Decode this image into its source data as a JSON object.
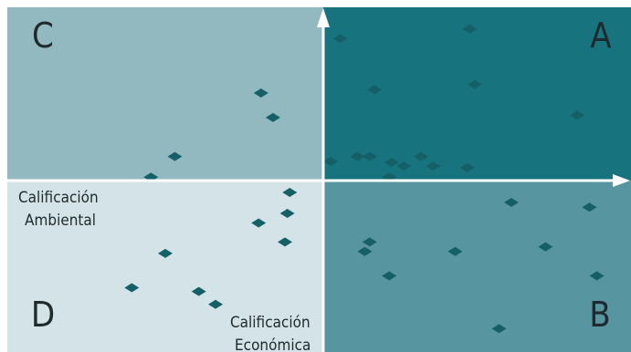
{
  "chart_data": {
    "type": "scatter",
    "title": "",
    "xlabel": "Calificación Económica",
    "xlabel_lines": [
      "Calificación",
      "Económica"
    ],
    "ylabel": "Calificación Ambiental",
    "ylabel_lines": [
      "Calificación",
      "Ambiental"
    ],
    "xlim": [
      -6.6,
      6.3
    ],
    "ylim": [
      -3.6,
      3.6
    ],
    "grid": false,
    "axes": "centered at origin with arrows",
    "colors": {
      "quadrant_A": "#17747f",
      "quadrant_B": "#5795a0",
      "quadrant_C": "#93b9c0",
      "quadrant_D": "#d4e3e8",
      "axis": "#ffffff",
      "marker": "#155f67",
      "text": "#1f2a2e"
    },
    "quadrants": [
      {
        "label": "A",
        "position": "top-right"
      },
      {
        "label": "B",
        "position": "bottom-right"
      },
      {
        "label": "C",
        "position": "top-left"
      },
      {
        "label": "D",
        "position": "bottom-left"
      }
    ],
    "points": [
      {
        "x": 0.35,
        "y": 2.95
      },
      {
        "x": 3.0,
        "y": 3.15
      },
      {
        "x": 1.05,
        "y": 1.89
      },
      {
        "x": 3.1,
        "y": 2.0
      },
      {
        "x": 5.2,
        "y": 1.36
      },
      {
        "x": 0.15,
        "y": 0.4
      },
      {
        "x": 0.7,
        "y": 0.5
      },
      {
        "x": 0.95,
        "y": 0.5
      },
      {
        "x": 1.4,
        "y": 0.38
      },
      {
        "x": 1.65,
        "y": 0.3
      },
      {
        "x": 1.35,
        "y": 0.07
      },
      {
        "x": 2.0,
        "y": 0.5
      },
      {
        "x": 2.25,
        "y": 0.3
      },
      {
        "x": 2.95,
        "y": 0.27
      },
      {
        "x": -1.3,
        "y": 1.82
      },
      {
        "x": -1.05,
        "y": 1.31
      },
      {
        "x": -3.1,
        "y": 0.5
      },
      {
        "x": -3.6,
        "y": 0.07
      },
      {
        "x": -0.7,
        "y": -0.25
      },
      {
        "x": -0.75,
        "y": -0.69
      },
      {
        "x": -1.35,
        "y": -0.89
      },
      {
        "x": -0.8,
        "y": -1.29
      },
      {
        "x": -3.3,
        "y": -1.53
      },
      {
        "x": -4.0,
        "y": -2.25
      },
      {
        "x": -2.6,
        "y": -2.33
      },
      {
        "x": -2.25,
        "y": -2.6
      },
      {
        "x": 3.85,
        "y": -0.46
      },
      {
        "x": 5.45,
        "y": -0.56
      },
      {
        "x": 0.95,
        "y": -1.29
      },
      {
        "x": 0.85,
        "y": -1.49
      },
      {
        "x": 2.7,
        "y": -1.49
      },
      {
        "x": 4.55,
        "y": -1.39
      },
      {
        "x": 1.35,
        "y": -2.0
      },
      {
        "x": 5.6,
        "y": -2.0
      },
      {
        "x": 3.6,
        "y": -3.11
      }
    ]
  }
}
